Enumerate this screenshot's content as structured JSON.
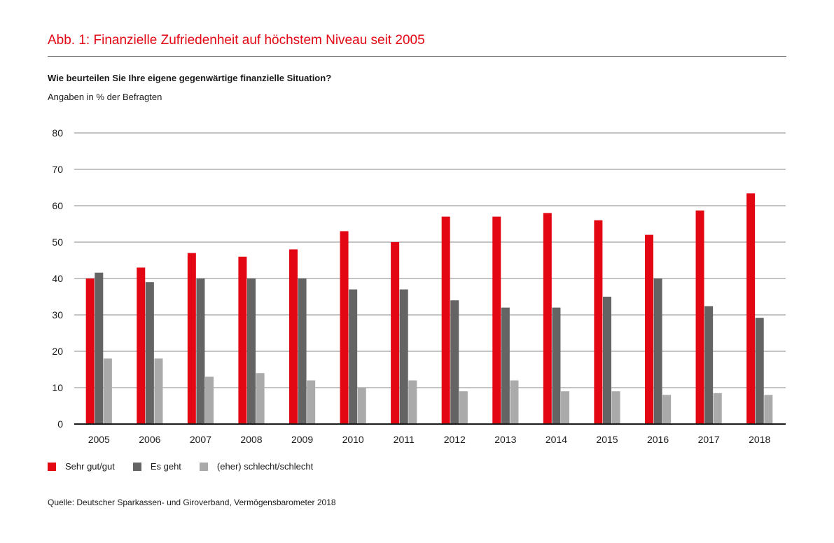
{
  "header": {
    "title": "Abb. 1: Finanzielle Zufriedenheit auf höchstem Niveau seit 2005",
    "question": "Wie beurteilen Sie Ihre eigene gegenwärtige finanzielle Situation?",
    "unit_note": "Angaben in % der Befragten"
  },
  "chart_data": {
    "type": "bar",
    "title": "Abb. 1: Finanzielle Zufriedenheit auf höchstem Niveau seit 2005",
    "subtitle": "Wie beurteilen Sie Ihre eigene gegenwärtige finanzielle Situation?",
    "ylabel": "Angaben in % der Befragten",
    "xlabel": "",
    "ylim": [
      0,
      80
    ],
    "yticks": [
      0,
      10,
      20,
      30,
      40,
      50,
      60,
      70,
      80
    ],
    "grid": true,
    "legend_position": "bottom-left",
    "categories": [
      "2005",
      "2006",
      "2007",
      "2008",
      "2009",
      "2010",
      "2011",
      "2012",
      "2013",
      "2014",
      "2015",
      "2016",
      "2017",
      "2018"
    ],
    "series": [
      {
        "name": "Sehr gut/gut",
        "color": "#e30613",
        "values": [
          40,
          43,
          47,
          46,
          48,
          53,
          50,
          57,
          57,
          58,
          56,
          52,
          58.7,
          63.4
        ]
      },
      {
        "name": "Es geht",
        "color": "#646464",
        "values": [
          41.6,
          39,
          40,
          40,
          40,
          37,
          37,
          34,
          32,
          32,
          35,
          40,
          32.4,
          29.2
        ]
      },
      {
        "name": "(eher) schlecht/schlecht",
        "color": "#aaaaaa",
        "values": [
          18,
          18,
          13,
          14,
          12,
          10,
          12,
          9,
          12,
          9,
          9,
          8,
          8.5,
          8
        ]
      }
    ]
  },
  "footer": {
    "source": "Quelle: Deutscher Sparkassen- und Giroverband, Vermögensbarometer 2018"
  }
}
